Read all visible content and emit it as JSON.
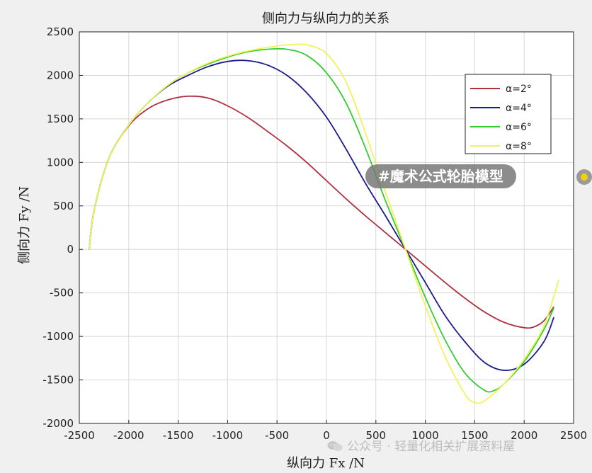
{
  "chart_data": {
    "type": "line",
    "title": "侧向力与纵向力的关系",
    "xlabel": "纵向力 Fx /N",
    "ylabel": "侧向力 Fy /N",
    "xlim": [
      -2500,
      2500
    ],
    "ylim": [
      -2000,
      2500
    ],
    "xticks": [
      "-2500",
      "-2000",
      "-1500",
      "-1000",
      "-500",
      "0",
      "500",
      "1000",
      "1500",
      "2000",
      "2500"
    ],
    "yticks": [
      "2500",
      "2000",
      "1500",
      "1000",
      "500",
      "0",
      "-500",
      "-1000",
      "-1500",
      "-2000"
    ],
    "grid": true,
    "legend_position": "top-right",
    "series": [
      {
        "name": "α=2°",
        "color": "#b03040",
        "points": [
          [
            -2400,
            0
          ],
          [
            -2350,
            450
          ],
          [
            -2200,
            1050
          ],
          [
            -2000,
            1420
          ],
          [
            -1800,
            1620
          ],
          [
            -1600,
            1720
          ],
          [
            -1400,
            1760
          ],
          [
            -1200,
            1740
          ],
          [
            -1000,
            1650
          ],
          [
            -800,
            1520
          ],
          [
            -600,
            1360
          ],
          [
            -400,
            1190
          ],
          [
            -200,
            1000
          ],
          [
            0,
            790
          ],
          [
            200,
            580
          ],
          [
            400,
            380
          ],
          [
            600,
            190
          ],
          [
            800,
            0
          ],
          [
            1000,
            -190
          ],
          [
            1200,
            -380
          ],
          [
            1400,
            -560
          ],
          [
            1600,
            -720
          ],
          [
            1800,
            -840
          ],
          [
            2000,
            -900
          ],
          [
            2100,
            -890
          ],
          [
            2200,
            -820
          ],
          [
            2300,
            -660
          ]
        ]
      },
      {
        "name": "α=4°",
        "color": "#1a1a8a",
        "points": [
          [
            -2400,
            0
          ],
          [
            -2350,
            450
          ],
          [
            -2200,
            1050
          ],
          [
            -2000,
            1430
          ],
          [
            -1800,
            1690
          ],
          [
            -1600,
            1880
          ],
          [
            -1400,
            2000
          ],
          [
            -1200,
            2100
          ],
          [
            -1000,
            2160
          ],
          [
            -800,
            2170
          ],
          [
            -600,
            2120
          ],
          [
            -400,
            2000
          ],
          [
            -200,
            1800
          ],
          [
            0,
            1520
          ],
          [
            200,
            1150
          ],
          [
            400,
            750
          ],
          [
            600,
            380
          ],
          [
            800,
            0
          ],
          [
            1000,
            -380
          ],
          [
            1200,
            -760
          ],
          [
            1400,
            -1060
          ],
          [
            1600,
            -1300
          ],
          [
            1800,
            -1390
          ],
          [
            2000,
            -1320
          ],
          [
            2200,
            -1060
          ],
          [
            2300,
            -780
          ]
        ]
      },
      {
        "name": "α=6°",
        "color": "#33cc33",
        "points": [
          [
            -2400,
            0
          ],
          [
            -2350,
            450
          ],
          [
            -2200,
            1050
          ],
          [
            -2000,
            1430
          ],
          [
            -1800,
            1690
          ],
          [
            -1600,
            1890
          ],
          [
            -1400,
            2030
          ],
          [
            -1200,
            2130
          ],
          [
            -1000,
            2210
          ],
          [
            -800,
            2270
          ],
          [
            -600,
            2300
          ],
          [
            -400,
            2300
          ],
          [
            -200,
            2230
          ],
          [
            0,
            2030
          ],
          [
            200,
            1680
          ],
          [
            400,
            1150
          ],
          [
            600,
            550
          ],
          [
            800,
            0
          ],
          [
            1000,
            -550
          ],
          [
            1200,
            -1040
          ],
          [
            1400,
            -1420
          ],
          [
            1600,
            -1620
          ],
          [
            1700,
            -1620
          ],
          [
            1800,
            -1540
          ],
          [
            2000,
            -1290
          ],
          [
            2200,
            -920
          ],
          [
            2300,
            -670
          ]
        ]
      },
      {
        "name": "α=8°",
        "color": "#f2f25a",
        "points": [
          [
            -2400,
            0
          ],
          [
            -2350,
            450
          ],
          [
            -2200,
            1050
          ],
          [
            -2000,
            1430
          ],
          [
            -1800,
            1690
          ],
          [
            -1600,
            1890
          ],
          [
            -1400,
            2030
          ],
          [
            -1200,
            2140
          ],
          [
            -1000,
            2220
          ],
          [
            -800,
            2280
          ],
          [
            -600,
            2320
          ],
          [
            -400,
            2350
          ],
          [
            -200,
            2350
          ],
          [
            0,
            2250
          ],
          [
            200,
            1920
          ],
          [
            400,
            1320
          ],
          [
            600,
            650
          ],
          [
            800,
            0
          ],
          [
            1000,
            -650
          ],
          [
            1200,
            -1230
          ],
          [
            1400,
            -1660
          ],
          [
            1500,
            -1760
          ],
          [
            1600,
            -1740
          ],
          [
            1800,
            -1540
          ],
          [
            2000,
            -1260
          ],
          [
            2200,
            -880
          ],
          [
            2350,
            -350
          ]
        ]
      }
    ]
  },
  "overlay": {
    "tag_text": "#魔术公式轮胎模型",
    "watermark_text": "公众号 · 轻量化相关扩展资料屋"
  }
}
